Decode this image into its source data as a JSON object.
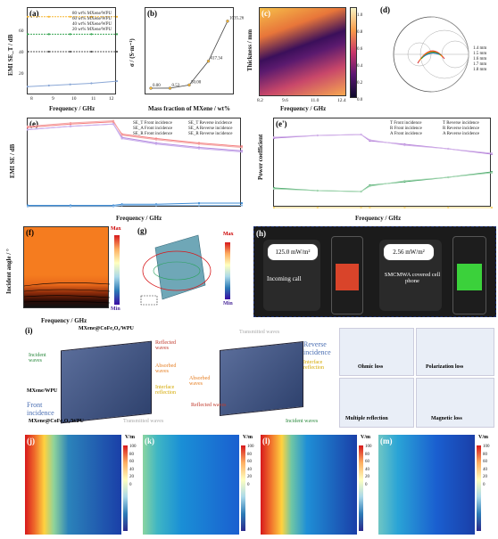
{
  "panels": {
    "a": {
      "label": "(a)",
      "xlabel": "Frequency / GHz",
      "ylabel": "EMI SE_T / dB",
      "legend": [
        "80 wt% MXene/WPU",
        "60 wt% MXene/WPU",
        "40 wt% MXene/WPU",
        "20 wt% MXene/WPU"
      ],
      "xticks": [
        "8",
        "9",
        "10",
        "11",
        "12"
      ],
      "yticks": [
        "20",
        "40",
        "60"
      ]
    },
    "b": {
      "label": "(b)",
      "xlabel": "Mass fraction of MXene / wt%",
      "ylabel": "σ / (S·m⁻¹)",
      "xticks": [
        "0",
        "20",
        "40",
        "60",
        "80"
      ],
      "yticks": [
        "0",
        "250",
        "500",
        "750",
        "1000"
      ],
      "points": [
        {
          "x": 0,
          "y": 0,
          "t": "0.00"
        },
        {
          "x": 20,
          "y": 0.53,
          "t": "0.53"
        },
        {
          "x": 40,
          "y": 50,
          "t": "50.00"
        },
        {
          "x": 60,
          "y": 417.34,
          "t": "417.34"
        },
        {
          "x": 80,
          "y": 1035.26,
          "t": "1035.26"
        }
      ]
    },
    "c": {
      "label": "(c)",
      "xlabel": "Frequency / GHz",
      "ylabel": "Thickness / mm",
      "xticks": [
        "8.2",
        "9.6",
        "11.0",
        "12.4"
      ],
      "yticks": [
        "1",
        "2",
        "3",
        "4"
      ],
      "cbar": [
        "1.0",
        "0.8",
        "0.6",
        "0.4",
        "0.2",
        "0.0"
      ]
    },
    "d": {
      "label": "(d)",
      "legend": [
        "1.4 mm",
        "1.5 mm",
        "1.6 mm",
        "1.7 mm",
        "1.8 mm"
      ]
    },
    "e": {
      "label": "(e)",
      "xlabel": "Frequency / GHz",
      "ylabel": "EMI SE / dB",
      "legend": [
        "SE_T Front incidence",
        "SE_T Reverse incidence",
        "SE_A Front incidence",
        "SE_A Reverse incidence",
        "SE_R Front incidence",
        "SE_R Reverse incidence"
      ],
      "xticks": [
        "8",
        "9",
        "10",
        "11",
        "12",
        "13",
        "14",
        "15",
        "16",
        "17",
        "18"
      ],
      "yticks": [
        "0",
        "20",
        "40",
        "60",
        "80"
      ]
    },
    "e2": {
      "label": "(e')",
      "xlabel": "Frequency / GHz",
      "ylabel": "Power coefficient",
      "legend": [
        "T Front incidence",
        "T Reverse incidence",
        "R Front incidence",
        "R Reverse incidence",
        "A Front incidence",
        "A Reverse incidence"
      ],
      "xticks": [
        "9",
        "10",
        "11",
        "12",
        "13",
        "14",
        "15",
        "16",
        "17",
        "18"
      ],
      "yticks": [
        "0.0",
        "0.2",
        "0.4",
        "0.6",
        "0.8",
        "1.0"
      ]
    },
    "f": {
      "label": "(f)",
      "xlabel": "Frequency / GHz",
      "ylabel": "Incident angle / °",
      "xticks": [
        "10",
        "12",
        "14",
        "16",
        "18"
      ],
      "yticks": [
        "0",
        "20",
        "40",
        "60",
        "80"
      ],
      "cbar_max": "Max",
      "cbar_min": "Min"
    },
    "g": {
      "label": "(g)",
      "cbar_max": "Max",
      "cbar_min": "Min"
    },
    "h": {
      "label": "(h)",
      "box1": "125.0 mW/m²",
      "box2": "2.56 mW/m²",
      "text1": "Incoming call",
      "text2": "SMCMWA covered cell phone"
    },
    "i": {
      "label": "(i)",
      "top": "MXene@CoFe₂O₄/WPU",
      "incident": "Incident waves",
      "reflected": "Reflected waves",
      "absorbed": "Absorbed waves",
      "interface": "Interface reflection",
      "mxwpu": "MXene/WPU",
      "front": "Front incidence",
      "bottom": "MXene@CoFe₂O₄/WPU",
      "transmitted": "Transmitted waves",
      "transmitted2": "Transmitted waves",
      "reverse": "Reverse incidence",
      "interface2": "Interface reflection",
      "absorbed2": "Absorbed waves",
      "reflected2": "Reflected waves",
      "incident2": "Incident waves",
      "ohmic": "Ohmic loss",
      "polar": "Polarization loss",
      "multiple": "Multiple reflection",
      "magnetic": "Magnetic loss"
    },
    "j": {
      "label": "(j)"
    },
    "k": {
      "label": "(k)"
    },
    "l": {
      "label": "(l)"
    },
    "m": {
      "label": "(m)"
    },
    "field": {
      "unit": "V/m",
      "ticks": [
        "100",
        "90",
        "80",
        "70",
        "60",
        "50",
        "40",
        "30",
        "20",
        "10",
        "0"
      ]
    }
  },
  "chart_data": [
    {
      "type": "line",
      "title": "",
      "xlabel": "Frequency / GHz",
      "ylabel": "EMI SE_T / dB",
      "xlim": [
        8.2,
        12.4
      ],
      "ylim": [
        0,
        80
      ],
      "series": [
        {
          "name": "80 wt% MXene/WPU",
          "values": [
            72,
            72,
            72,
            72,
            72
          ]
        },
        {
          "name": "60 wt% MXene/WPU",
          "values": [
            56,
            56,
            56,
            56,
            56
          ]
        },
        {
          "name": "40 wt% MXene/WPU",
          "values": [
            40,
            40,
            40,
            40,
            40
          ]
        },
        {
          "name": "20 wt% MXene/WPU",
          "values": [
            8,
            9,
            10,
            11,
            13
          ]
        }
      ],
      "x": [
        8.2,
        9.2,
        10.2,
        11.2,
        12.4
      ]
    },
    {
      "type": "line",
      "title": "",
      "xlabel": "Mass fraction of MXene / wt%",
      "ylabel": "σ / (S·m⁻¹)",
      "x": [
        0,
        20,
        40,
        60,
        80
      ],
      "series": [
        {
          "values": [
            0,
            0.53,
            50,
            417.34,
            1035.26
          ]
        }
      ]
    },
    {
      "type": "line",
      "title": "",
      "xlabel": "Frequency / GHz",
      "ylabel": "EMI SE / dB",
      "xlim": [
        8,
        18
      ],
      "ylim": [
        0,
        80
      ],
      "x": [
        8,
        10,
        12,
        12.4,
        14,
        16,
        18
      ],
      "series": [
        {
          "name": "SE_T Front incidence",
          "values": [
            72,
            75,
            77,
            66,
            62,
            58,
            55
          ]
        },
        {
          "name": "SE_T Reverse incidence",
          "values": [
            73,
            76,
            78,
            65,
            61,
            57,
            54
          ]
        },
        {
          "name": "SE_A Front incidence",
          "values": [
            70,
            73,
            75,
            63,
            58,
            54,
            51
          ]
        },
        {
          "name": "SE_A Reverse incidence",
          "values": [
            70,
            73,
            75,
            62,
            57,
            53,
            50
          ]
        },
        {
          "name": "SE_R Front incidence",
          "values": [
            2,
            2,
            2,
            3,
            3,
            4,
            4
          ]
        },
        {
          "name": "SE_R Reverse incidence",
          "values": [
            1,
            1,
            1,
            2,
            2,
            2,
            2
          ]
        }
      ]
    },
    {
      "type": "line",
      "title": "",
      "xlabel": "Frequency / GHz",
      "ylabel": "Power coefficient",
      "xlim": [
        8,
        18
      ],
      "ylim": [
        0,
        1
      ],
      "x": [
        8,
        10,
        12,
        12.4,
        14,
        16,
        18
      ],
      "series": [
        {
          "name": "T Front incidence",
          "values": [
            0,
            0,
            0,
            0,
            0,
            0,
            0
          ]
        },
        {
          "name": "T Reverse incidence",
          "values": [
            0,
            0,
            0,
            0,
            0,
            0,
            0
          ]
        },
        {
          "name": "R Front incidence",
          "values": [
            0.22,
            0.19,
            0.18,
            0.25,
            0.29,
            0.34,
            0.4
          ]
        },
        {
          "name": "R Reverse incidence",
          "values": [
            0.21,
            0.19,
            0.18,
            0.24,
            0.3,
            0.34,
            0.39
          ]
        },
        {
          "name": "A Front incidence",
          "values": [
            0.78,
            0.81,
            0.82,
            0.75,
            0.71,
            0.66,
            0.6
          ]
        },
        {
          "name": "A Reverse incidence",
          "values": [
            0.79,
            0.81,
            0.82,
            0.76,
            0.7,
            0.66,
            0.61
          ]
        }
      ]
    }
  ],
  "colors": {
    "orange": "#f7931e",
    "red": "#d7191c",
    "blue": "#2b83ba",
    "navy": "#253494",
    "green": "#2ca25f",
    "purple": "#b07ad6"
  }
}
